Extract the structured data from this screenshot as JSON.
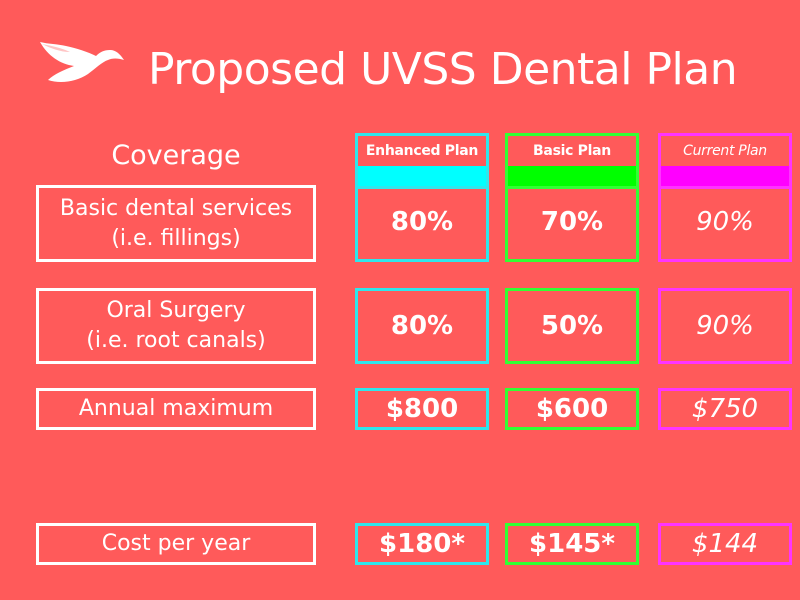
{
  "title": "Proposed UVSS Dental Plan",
  "logo": {
    "icon": "swallow-bird-icon"
  },
  "coverage_heading": "Coverage",
  "colors": {
    "background": "#FF5A5A",
    "enhanced": "#2FE6EC",
    "enhanced_fill": "#00FFFF",
    "basic": "#33FF33",
    "basic_fill": "#00FF00",
    "current": "#FF33FF",
    "current_fill": "#FF00FF"
  },
  "plans": [
    {
      "name": "Enhanced Plan"
    },
    {
      "name": "Basic Plan"
    },
    {
      "name": "Current Plan"
    }
  ],
  "rows": [
    {
      "label_line1": "Basic dental services",
      "label_line2": "(i.e. fillings)",
      "values": [
        "80%",
        "70%",
        "90%"
      ]
    },
    {
      "label_line1": "Oral Surgery",
      "label_line2": "(i.e. root canals)",
      "values": [
        "80%",
        "50%",
        "90%"
      ]
    },
    {
      "label_line1": "Annual maximum",
      "label_line2": "",
      "values": [
        "$800",
        "$600",
        "$750"
      ]
    },
    {
      "label_line1": "Cost per year",
      "label_line2": "",
      "values": [
        "$180*",
        "$145*",
        "$144"
      ]
    }
  ]
}
